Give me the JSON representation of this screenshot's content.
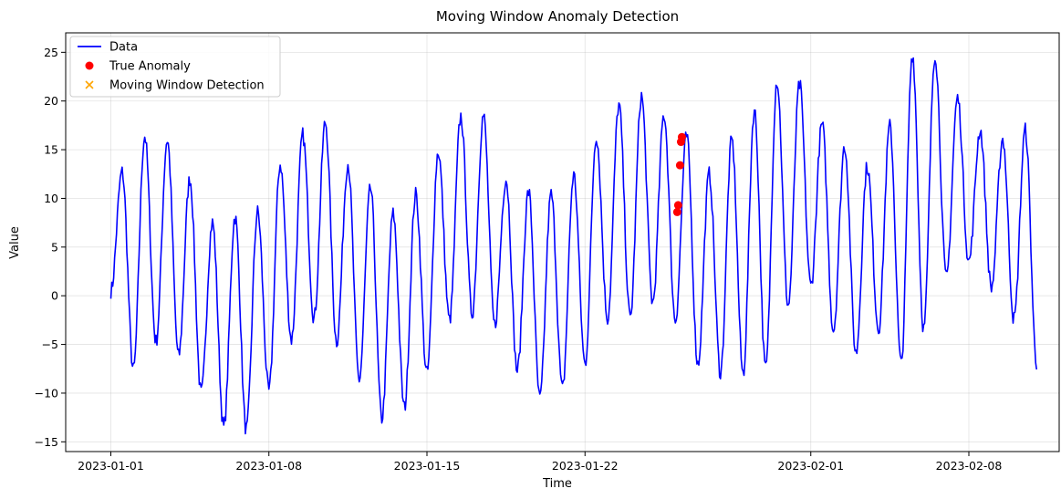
{
  "chart_data": {
    "type": "line",
    "title": "Moving Window Anomaly Detection",
    "xlabel": "Time",
    "ylabel": "Value",
    "x_range": [
      "2022-12-30",
      "2023-02-12"
    ],
    "ylim": [
      -16,
      27
    ],
    "x_ticks": [
      {
        "date": "2023-01-01",
        "label": "2023-01-01"
      },
      {
        "date": "2023-01-08",
        "label": "2023-01-08"
      },
      {
        "date": "2023-01-15",
        "label": "2023-01-15"
      },
      {
        "date": "2023-01-22",
        "label": "2023-01-22"
      },
      {
        "date": "2023-02-01",
        "label": "2023-02-01"
      },
      {
        "date": "2023-02-08",
        "label": "2023-02-08"
      }
    ],
    "y_ticks": [
      -15,
      -10,
      -5,
      0,
      5,
      10,
      15,
      20,
      25
    ],
    "grid": true,
    "legend_position": "top-left",
    "series": [
      {
        "name": "Data",
        "kind": "line",
        "color": "#0000ff",
        "data_start": "2023-01-01",
        "data_end": "2023-02-11",
        "peaks": [
          12.7,
          16.4,
          16.0,
          12.0,
          7.5,
          8.1,
          8.6,
          13.5,
          16.5,
          17.8,
          13.6,
          11.0,
          8.4,
          10.4,
          14.8,
          18.4,
          18.5,
          12.0,
          10.7,
          10.4,
          12.4,
          16.4,
          19.6,
          20.5,
          18.6,
          16.4,
          12.5,
          16.0,
          19.0,
          22.1,
          21.7,
          17.6,
          15.4,
          13.3,
          17.4,
          24.8,
          24.8,
          20.3,
          17.0,
          16.1,
          17.0
        ],
        "troughs": [
          0.5,
          -7.6,
          -4.7,
          -6.2,
          -10.0,
          -13.5,
          -13.8,
          -9.8,
          -4.5,
          -2.3,
          -4.7,
          -8.6,
          -12.6,
          -11.5,
          -8.0,
          -2.5,
          -1.8,
          -3.0,
          -7.7,
          -10.6,
          -9.6,
          -7.0,
          -2.3,
          -2.3,
          -0.7,
          -2.5,
          -7.0,
          -7.9,
          -8.0,
          -7.5,
          -1.0,
          1.0,
          -3.5,
          -5.9,
          -3.4,
          -7.0,
          -3.4,
          1.8,
          3.5,
          0.8,
          -2.4,
          -6.9,
          1.8
        ]
      },
      {
        "name": "True Anomaly",
        "kind": "scatter",
        "marker": "circle",
        "color": "#ff0000",
        "points": [
          {
            "x": "2023-01-26T02:00",
            "y": 8.6
          },
          {
            "x": "2023-01-26T03:00",
            "y": 9.3
          },
          {
            "x": "2023-01-26T05:00",
            "y": 13.4
          },
          {
            "x": "2023-01-26T06:00",
            "y": 15.8
          },
          {
            "x": "2023-01-26T07:00",
            "y": 16.3
          }
        ]
      },
      {
        "name": "Moving Window Detection",
        "kind": "scatter",
        "marker": "x",
        "color": "#ffa500",
        "points": []
      }
    ]
  }
}
